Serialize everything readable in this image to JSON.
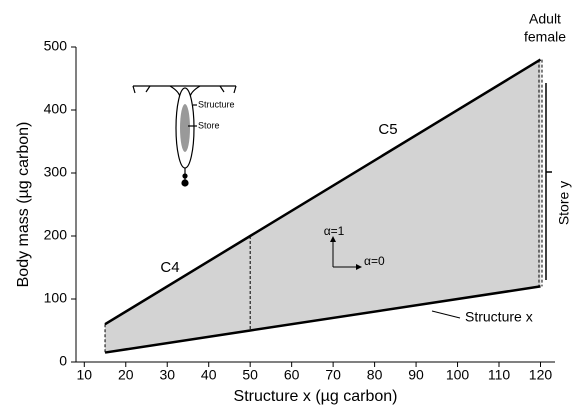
{
  "chart_data": {
    "type": "line",
    "x_label": "Structure x (µg carbon)",
    "y_label": "Body mass (µg carbon)",
    "x": [
      15,
      50,
      120
    ],
    "series": [
      {
        "color": "#000000",
        "values": [
          60,
          200,
          480
        ]
      },
      {
        "color": "#000000",
        "values": [
          15,
          50,
          120
        ]
      }
    ],
    "fill_color": "#d3d3d3",
    "xlim": [
      8,
      123.5
    ],
    "xticks": [
      10,
      20,
      30,
      40,
      50,
      60,
      70,
      80,
      90,
      100,
      110,
      120
    ],
    "ylim": [
      0,
      500
    ],
    "yticks": [
      0,
      100,
      200,
      300,
      400,
      500
    ],
    "annotations": {
      "c4": "C4",
      "c5": "C5",
      "adult": [
        "Adult",
        "female"
      ],
      "structure_x": "Structure x",
      "store_y": "Store y",
      "alpha1": "α=1",
      "alpha0": "α=0",
      "inset_structure": "Structure",
      "inset_store": "Store"
    }
  }
}
